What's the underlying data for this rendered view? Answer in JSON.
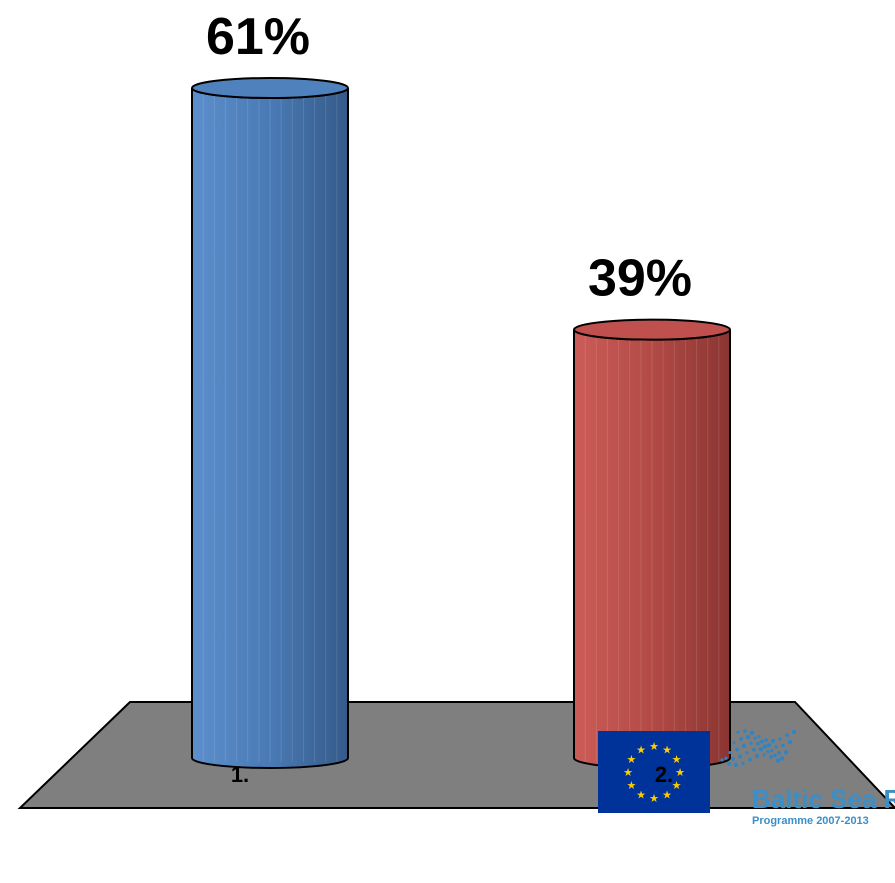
{
  "chart_data": {
    "type": "bar",
    "style": "3d-cylinder",
    "categories": [
      "1.",
      "2."
    ],
    "values": [
      61,
      39
    ],
    "data_labels": [
      "61%",
      "39%"
    ],
    "ylim": [
      0,
      61
    ],
    "colors": [
      "#4f81bd",
      "#c0504d"
    ],
    "floor_color": "#7f7f7f",
    "grid": false,
    "legend": "none"
  },
  "branding": {
    "logo_text": "Baltic Sea Reg",
    "logo_subtext": "Programme 2007-2013",
    "flag_color": "#003399",
    "star_color": "#ffcc00"
  }
}
